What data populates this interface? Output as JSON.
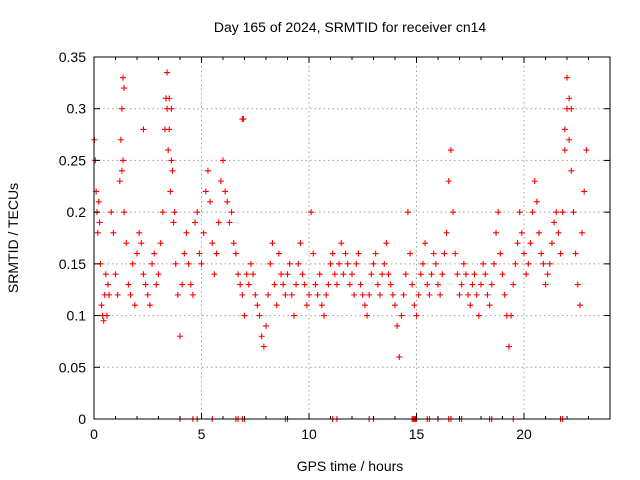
{
  "chart_data": {
    "type": "scatter",
    "title": "Day 165 of 2024, SRMTID for receiver cn14",
    "xlabel": "GPS time / hours",
    "ylabel": "SRMTID / TECUs",
    "xlim": [
      0,
      24
    ],
    "ylim": [
      0,
      0.35
    ],
    "xticks": [
      0,
      5,
      10,
      15,
      20
    ],
    "yticks": [
      0,
      0.05,
      0.1,
      0.15,
      0.2,
      0.25,
      0.3,
      0.35
    ],
    "ytick_labels": [
      "0",
      "0.05",
      "0.1",
      "0.15",
      "0.2",
      "0.25",
      "0.3",
      "0.35"
    ],
    "grid": true,
    "marker": "+",
    "color": "#ff0000",
    "series": [
      {
        "name": "SRMTID",
        "x": [
          0.02,
          0.06,
          0.1,
          0.14,
          0.18,
          0.22,
          0.26,
          0.3,
          0.35,
          0.4,
          0.45,
          0.5,
          0.55,
          0.6,
          0.65,
          0.7,
          0.8,
          0.9,
          1.0,
          1.1,
          1.2,
          1.25,
          1.3,
          1.35,
          1.4,
          1.5,
          1.6,
          1.7,
          1.8,
          1.9,
          2.0,
          2.1,
          2.2,
          2.3,
          2.4,
          2.5,
          2.6,
          2.7,
          2.8,
          2.9,
          3.0,
          3.1,
          3.2,
          3.3,
          3.35,
          3.4,
          3.45,
          3.5,
          3.55,
          3.6,
          3.65,
          3.7,
          3.75,
          3.8,
          3.9,
          4.0,
          4.1,
          4.2,
          4.3,
          4.4,
          4.5,
          4.6,
          4.7,
          4.8,
          4.9,
          5.0,
          5.1,
          5.2,
          5.3,
          5.4,
          5.5,
          5.6,
          5.7,
          5.8,
          5.9,
          6.0,
          6.1,
          6.2,
          6.3,
          6.4,
          6.5,
          6.6,
          6.7,
          6.8,
          6.9,
          7.0,
          7.1,
          7.2,
          7.3,
          7.4,
          7.5,
          7.6,
          7.7,
          7.8,
          7.9,
          8.0,
          8.1,
          8.2,
          8.3,
          8.4,
          8.5,
          8.6,
          8.7,
          8.8,
          8.9,
          9.0,
          9.1,
          9.2,
          9.3,
          9.4,
          9.5,
          9.6,
          9.7,
          9.8,
          9.9,
          10.0,
          10.1,
          10.2,
          10.3,
          10.4,
          10.5,
          10.6,
          10.7,
          10.8,
          10.9,
          11.0,
          11.1,
          11.2,
          11.3,
          11.4,
          11.5,
          11.6,
          11.7,
          11.8,
          11.9,
          12.0,
          12.1,
          12.2,
          12.3,
          12.4,
          12.5,
          12.6,
          12.7,
          12.8,
          12.9,
          13.0,
          13.1,
          13.2,
          13.3,
          13.4,
          13.5,
          13.6,
          13.7,
          13.8,
          13.9,
          14.0,
          14.1,
          14.2,
          14.3,
          14.4,
          14.5,
          14.6,
          14.7,
          14.8,
          14.9,
          15.0,
          15.1,
          15.2,
          15.3,
          15.4,
          15.5,
          15.6,
          15.7,
          15.8,
          15.9,
          16.0,
          16.1,
          16.2,
          16.3,
          16.4,
          16.5,
          16.6,
          16.7,
          16.8,
          16.9,
          17.0,
          17.1,
          17.2,
          17.3,
          17.4,
          17.5,
          17.6,
          17.7,
          17.8,
          17.9,
          18.0,
          18.1,
          18.2,
          18.3,
          18.4,
          18.5,
          18.6,
          18.7,
          18.8,
          18.9,
          19.0,
          19.1,
          19.2,
          19.3,
          19.4,
          19.5,
          19.6,
          19.7,
          19.8,
          19.9,
          20.0,
          20.1,
          20.2,
          20.3,
          20.4,
          20.5,
          20.6,
          20.7,
          20.8,
          20.9,
          21.0,
          21.1,
          21.2,
          21.3,
          21.4,
          21.5,
          21.6,
          21.7,
          21.8,
          21.9,
          22.0,
          22.1,
          22.2,
          22.3,
          22.4,
          22.5,
          22.6,
          22.7,
          22.8,
          22.9,
          1.3,
          1.35,
          1.4,
          3.35,
          3.4,
          3.5,
          3.6,
          6.9,
          6.95,
          21.9,
          22.0,
          22.1,
          22.2,
          2.3,
          4.0,
          4.6,
          4.8,
          5.5,
          6.6,
          6.7,
          6.9,
          7.0,
          8.9,
          9.0,
          11.1,
          11.3,
          12.8,
          13.0,
          14.8,
          14.85,
          14.9,
          14.95,
          15.0,
          15.5,
          15.6,
          16.0,
          16.5,
          16.6,
          17.0,
          17.1,
          18.4,
          18.5,
          19.5,
          21.7,
          21.8
        ],
        "y": [
          0.27,
          0.25,
          0.22,
          0.2,
          0.18,
          0.21,
          0.19,
          0.15,
          0.11,
          0.1,
          0.095,
          0.12,
          0.14,
          0.1,
          0.13,
          0.12,
          0.2,
          0.18,
          0.14,
          0.12,
          0.23,
          0.27,
          0.3,
          0.25,
          0.2,
          0.17,
          0.13,
          0.12,
          0.15,
          0.11,
          0.16,
          0.18,
          0.17,
          0.14,
          0.13,
          0.12,
          0.11,
          0.15,
          0.16,
          0.13,
          0.14,
          0.17,
          0.2,
          0.28,
          0.31,
          0.3,
          0.26,
          0.28,
          0.22,
          0.25,
          0.24,
          0.19,
          0.2,
          0.15,
          0.12,
          0.08,
          0.13,
          0.16,
          0.18,
          0.15,
          0.13,
          0.12,
          0.19,
          0.2,
          0.16,
          0.15,
          0.18,
          0.22,
          0.24,
          0.21,
          0.17,
          0.14,
          0.16,
          0.19,
          0.23,
          0.25,
          0.22,
          0.21,
          0.19,
          0.2,
          0.17,
          0.16,
          0.14,
          0.13,
          0.12,
          0.1,
          0.14,
          0.13,
          0.15,
          0.14,
          0.12,
          0.11,
          0.1,
          0.08,
          0.07,
          0.09,
          0.12,
          0.15,
          0.17,
          0.13,
          0.11,
          0.16,
          0.14,
          0.13,
          0.12,
          0.14,
          0.15,
          0.12,
          0.1,
          0.13,
          0.15,
          0.17,
          0.14,
          0.13,
          0.11,
          0.12,
          0.2,
          0.16,
          0.13,
          0.12,
          0.14,
          0.11,
          0.1,
          0.12,
          0.13,
          0.15,
          0.16,
          0.14,
          0.13,
          0.15,
          0.17,
          0.14,
          0.16,
          0.15,
          0.13,
          0.14,
          0.12,
          0.15,
          0.16,
          0.13,
          0.12,
          0.11,
          0.1,
          0.12,
          0.14,
          0.15,
          0.16,
          0.13,
          0.12,
          0.14,
          0.15,
          0.17,
          0.14,
          0.13,
          0.12,
          0.11,
          0.09,
          0.06,
          0.1,
          0.12,
          0.14,
          0.2,
          0.16,
          0.13,
          0.11,
          0.1,
          0.12,
          0.14,
          0.15,
          0.17,
          0.13,
          0.12,
          0.14,
          0.16,
          0.15,
          0.13,
          0.12,
          0.14,
          0.16,
          0.18,
          0.23,
          0.26,
          0.2,
          0.16,
          0.14,
          0.12,
          0.13,
          0.15,
          0.14,
          0.12,
          0.11,
          0.13,
          0.14,
          0.12,
          0.1,
          0.13,
          0.15,
          0.14,
          0.12,
          0.11,
          0.13,
          0.15,
          0.18,
          0.2,
          0.16,
          0.14,
          0.12,
          0.1,
          0.07,
          0.1,
          0.13,
          0.15,
          0.17,
          0.2,
          0.18,
          0.16,
          0.14,
          0.15,
          0.17,
          0.2,
          0.23,
          0.21,
          0.18,
          0.16,
          0.15,
          0.13,
          0.14,
          0.15,
          0.17,
          0.19,
          0.2,
          0.18,
          0.16,
          0.2,
          0.26,
          0.3,
          0.27,
          0.24,
          0.2,
          0.16,
          0.13,
          0.11,
          0.18,
          0.22,
          0.26,
          0.24,
          0.33,
          0.32,
          0.31,
          0.335,
          0.31,
          0.3,
          0.29,
          0.29,
          0.28,
          0.33,
          0.31,
          0.3,
          0.28,
          0,
          0,
          0,
          0,
          0,
          0,
          0,
          0,
          0,
          0,
          0,
          0,
          0,
          0,
          0,
          0,
          0,
          0,
          0,
          0,
          0,
          0,
          0,
          0,
          0,
          0,
          0,
          0,
          0,
          0,
          0
        ]
      }
    ]
  }
}
